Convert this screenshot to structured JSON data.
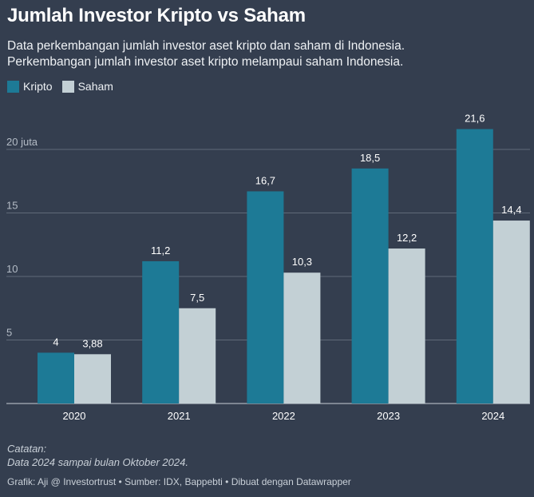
{
  "chart_data": {
    "type": "bar",
    "title": "Jumlah Investor Kripto vs Saham",
    "subtitle_lines": [
      "Data perkembangan jumlah investor aset kripto dan saham di Indonesia.",
      "Perkembangan jumlah investor aset kripto melampaui saham Indonesia."
    ],
    "categories": [
      "2020",
      "2021",
      "2022",
      "2023",
      "2024"
    ],
    "series": [
      {
        "name": "Kripto",
        "color": "#1d7a96",
        "values": [
          4,
          11.2,
          16.7,
          18.5,
          21.6
        ],
        "labels": [
          "4",
          "11,2",
          "16,7",
          "18,5",
          "21,6"
        ]
      },
      {
        "name": "Saham",
        "color": "#c3d0d5",
        "values": [
          3.88,
          7.5,
          10.3,
          12.2,
          14.4
        ],
        "labels": [
          "3,88",
          "7,5",
          "10,3",
          "12,2",
          "14,4"
        ]
      }
    ],
    "y_ticks": [
      {
        "value": 5,
        "label": "5"
      },
      {
        "value": 10,
        "label": "10"
      },
      {
        "value": 15,
        "label": "15"
      },
      {
        "value": 20,
        "label": "20 juta"
      }
    ],
    "ylim": [
      0,
      22
    ],
    "xlabel": "",
    "ylabel": "",
    "grid": true,
    "legend_position": "top-left"
  },
  "note": {
    "heading": "Catatan:",
    "text": "Data 2024 sampai bulan Oktober 2024."
  },
  "footer": "Grafik: Aji @ Investortrust • Sumber: IDX, Bappebti • Dibuat dengan Datawrapper"
}
